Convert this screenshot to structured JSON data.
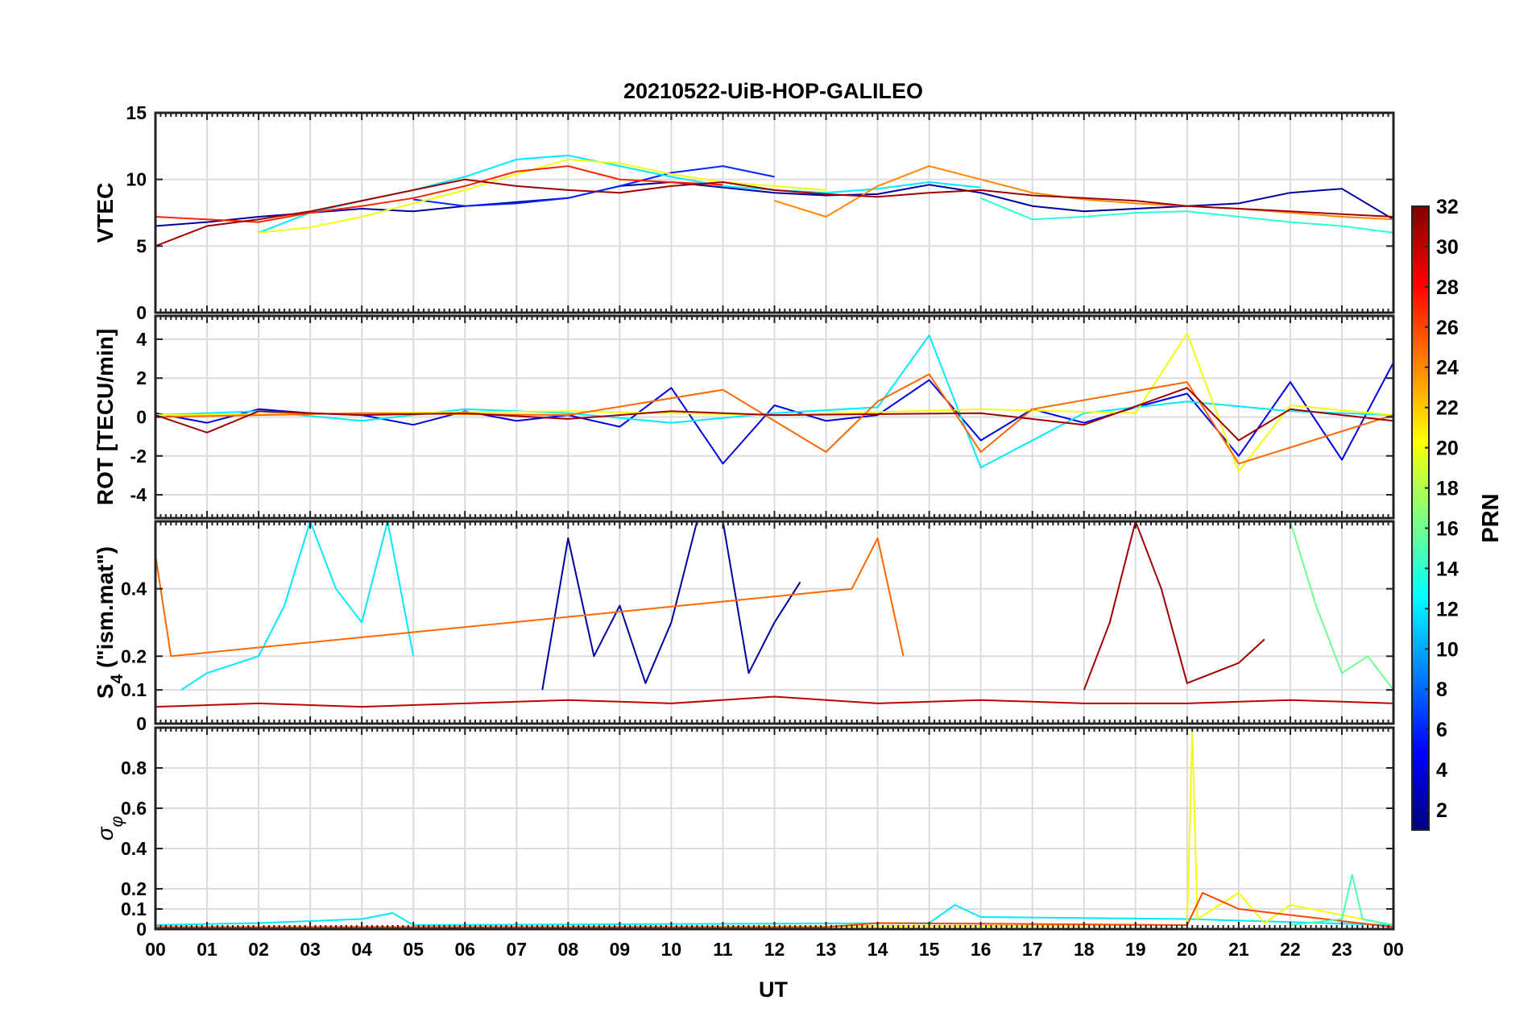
{
  "chart_data": {
    "type": "line",
    "title": "20210522-UiB-HOP-GALILEO",
    "xlabel": "UT",
    "x_ticks": [
      "00",
      "01",
      "02",
      "03",
      "04",
      "05",
      "06",
      "07",
      "08",
      "09",
      "10",
      "11",
      "12",
      "13",
      "14",
      "15",
      "16",
      "17",
      "18",
      "19",
      "20",
      "21",
      "22",
      "23",
      "00"
    ],
    "xlim": [
      0,
      24
    ],
    "grid": true,
    "panels": [
      {
        "key": "vtec",
        "ylabel": "VTEC",
        "ylim": [
          0,
          15
        ],
        "yticks": [
          "0",
          "5",
          "10",
          "15"
        ],
        "ytick_values": [
          0,
          5,
          10,
          15
        ],
        "series": [
          {
            "name": "PRN 2",
            "x": [
              0,
              1,
              2,
              3,
              4,
              5,
              6,
              7,
              8,
              9,
              10,
              11,
              12,
              13,
              14,
              15,
              16,
              17,
              18,
              19,
              20,
              21,
              22,
              23,
              24
            ],
            "values": [
              6.5,
              6.8,
              7.2,
              7.5,
              7.8,
              7.6,
              8.0,
              8.3,
              8.6,
              9.5,
              9.8,
              9.4,
              9.0,
              8.8,
              8.9,
              9.6,
              9.0,
              8.0,
              7.6,
              7.8,
              8.0,
              8.2,
              9.0,
              9.3,
              7.0
            ]
          },
          {
            "name": "PRN 6",
            "x": [
              5,
              6,
              7,
              8,
              9,
              10,
              11,
              12
            ],
            "values": [
              8.5,
              8.0,
              8.2,
              8.6,
              9.5,
              10.5,
              11.0,
              10.2
            ]
          },
          {
            "name": "PRN 12",
            "x": [
              2,
              3,
              4,
              5,
              6,
              7,
              8,
              9,
              10,
              11,
              12,
              13,
              14,
              15,
              16
            ],
            "values": [
              6.0,
              7.5,
              8.4,
              9.2,
              10.2,
              11.5,
              11.8,
              11.0,
              10.2,
              9.5,
              9.2,
              9.0,
              9.3,
              9.8,
              9.4
            ]
          },
          {
            "name": "PRN 14",
            "x": [
              16,
              17,
              18,
              19,
              20,
              21,
              22,
              23,
              24
            ],
            "values": [
              8.6,
              7.0,
              7.2,
              7.5,
              7.6,
              7.2,
              6.8,
              6.5,
              6.0
            ]
          },
          {
            "name": "PRN 20",
            "x": [
              2,
              3,
              4,
              5,
              6,
              7,
              8,
              9,
              10,
              11,
              12,
              13
            ],
            "values": [
              6.0,
              6.4,
              7.2,
              8.2,
              9.2,
              10.4,
              11.5,
              11.2,
              10.4,
              9.8,
              9.5,
              9.2
            ]
          },
          {
            "name": "PRN 24",
            "x": [
              12,
              13,
              14,
              15,
              16,
              17,
              18,
              19,
              20,
              21,
              22,
              23,
              24
            ],
            "values": [
              8.4,
              7.2,
              9.5,
              11.0,
              10.0,
              9.0,
              8.5,
              8.2,
              8.0,
              7.8,
              7.5,
              7.2,
              7.0
            ]
          },
          {
            "name": "PRN 27",
            "x": [
              0,
              1,
              2,
              3,
              4,
              5,
              6,
              7,
              8,
              9,
              10,
              11
            ],
            "values": [
              7.2,
              7.0,
              6.8,
              7.5,
              8.0,
              8.6,
              9.5,
              10.6,
              11.0,
              10.0,
              9.8,
              9.6
            ]
          },
          {
            "name": "PRN 31",
            "x": [
              0,
              1,
              2,
              3,
              4,
              5,
              6,
              7,
              8,
              9,
              10,
              11,
              12,
              13,
              14,
              15,
              16,
              17,
              18,
              19,
              20,
              21,
              22,
              23,
              24
            ],
            "values": [
              5.0,
              6.5,
              7.0,
              7.6,
              8.4,
              9.2,
              10.0,
              9.5,
              9.2,
              9.0,
              9.5,
              9.8,
              9.2,
              8.9,
              8.7,
              9.0,
              9.2,
              8.8,
              8.6,
              8.4,
              8.0,
              7.8,
              7.6,
              7.4,
              7.2
            ]
          }
        ]
      },
      {
        "key": "rot",
        "ylabel": "ROT [TECU/min]",
        "ylim": [
          -5.2,
          5.2
        ],
        "yticks": [
          "-4",
          "-2",
          "0",
          "2",
          "4"
        ],
        "ytick_values": [
          -4,
          -2,
          0,
          2,
          4
        ],
        "series": [
          {
            "name": "PRN 4",
            "x": [
              0,
              1,
              2,
              3,
              4,
              5,
              6,
              7,
              8,
              9,
              10,
              11,
              12,
              13,
              14,
              15,
              16,
              17,
              18,
              19,
              20,
              21,
              22,
              23,
              24
            ],
            "values": [
              0.2,
              -0.3,
              0.4,
              0.2,
              0.1,
              -0.4,
              0.3,
              -0.2,
              0.1,
              -0.5,
              1.5,
              -2.4,
              0.6,
              -0.2,
              0.1,
              1.9,
              -1.2,
              0.4,
              -0.3,
              0.5,
              1.2,
              -2.0,
              1.8,
              -2.2,
              2.8
            ]
          },
          {
            "name": "PRN 12",
            "x": [
              0,
              2,
              4,
              6,
              8,
              10,
              12,
              14,
              15,
              16,
              18,
              20,
              22,
              24
            ],
            "values": [
              0.1,
              0.3,
              -0.2,
              0.4,
              0.2,
              -0.3,
              0.2,
              0.5,
              4.2,
              -2.6,
              0.2,
              0.8,
              0.3,
              0.1
            ]
          },
          {
            "name": "PRN 20",
            "x": [
              0,
              4,
              8,
              12,
              16,
              19,
              20,
              21,
              22,
              24
            ],
            "values": [
              0.1,
              0.2,
              0.3,
              0.1,
              0.4,
              0.2,
              4.3,
              -2.8,
              0.6,
              0.1
            ]
          },
          {
            "name": "PRN 25",
            "x": [
              0,
              4,
              8,
              11,
              13,
              14,
              15,
              16,
              17,
              20,
              21,
              24
            ],
            "values": [
              0.0,
              0.2,
              0.1,
              1.4,
              -1.8,
              0.8,
              2.2,
              -1.8,
              0.4,
              1.8,
              -2.4,
              0.1
            ]
          },
          {
            "name": "PRN 31",
            "x": [
              0,
              1,
              2,
              4,
              6,
              8,
              10,
              12,
              16,
              18,
              20,
              21,
              22,
              24
            ],
            "values": [
              0.1,
              -0.8,
              0.3,
              0.1,
              0.2,
              -0.1,
              0.3,
              0.1,
              0.2,
              -0.4,
              1.5,
              -1.2,
              0.4,
              -0.2
            ]
          }
        ]
      },
      {
        "key": "s4",
        "ylabel": "S4 (\"ism.mat\")",
        "ylabel_main": "S",
        "ylabel_sub": "4",
        "ylabel_rest": " (\"ism.mat\")",
        "ylim": [
          0,
          0.6
        ],
        "yticks": [
          "0",
          "0.1",
          "0.2",
          "0.4"
        ],
        "ytick_values": [
          0,
          0.1,
          0.2,
          0.4
        ],
        "series": [
          {
            "name": "PRN 2",
            "x": [
              7.5,
              8,
              8.5,
              9,
              9.5,
              10,
              10.5,
              11,
              11.5,
              12,
              12.5
            ],
            "values": [
              0.1,
              0.55,
              0.2,
              0.35,
              0.12,
              0.3,
              0.6,
              0.6,
              0.15,
              0.3,
              0.42
            ]
          },
          {
            "name": "PRN 12",
            "x": [
              0.5,
              1,
              2,
              2.5,
              3,
              3.5,
              4,
              4.5,
              5
            ],
            "values": [
              0.1,
              0.15,
              0.2,
              0.35,
              0.6,
              0.4,
              0.3,
              0.6,
              0.2
            ]
          },
          {
            "name": "PRN 16",
            "x": [
              21.5,
              22,
              22.5,
              23,
              23.5,
              24
            ],
            "values": [
              0.6,
              0.6,
              0.35,
              0.15,
              0.2,
              0.1
            ]
          },
          {
            "name": "PRN 25",
            "x": [
              0,
              0.3,
              13.5,
              14,
              14.5
            ],
            "values": [
              0.5,
              0.2,
              0.4,
              0.55,
              0.2
            ]
          },
          {
            "name": "PRN 31",
            "x": [
              18,
              18.5,
              19,
              19.5,
              20,
              21,
              21.5
            ],
            "values": [
              0.1,
              0.3,
              0.6,
              0.4,
              0.12,
              0.18,
              0.25
            ]
          },
          {
            "name": "PRN 30",
            "x": [
              0,
              2,
              4,
              6,
              8,
              10,
              12,
              14,
              16,
              18,
              20,
              22,
              24
            ],
            "values": [
              0.05,
              0.06,
              0.05,
              0.06,
              0.07,
              0.06,
              0.08,
              0.06,
              0.07,
              0.06,
              0.06,
              0.07,
              0.06
            ]
          }
        ]
      },
      {
        "key": "sigma",
        "ylabel": "σφ",
        "ylabel_main": "σ",
        "ylabel_sub": "φ",
        "ylim": [
          0,
          1
        ],
        "yticks": [
          "0",
          "0.1",
          "0.2",
          "0.4",
          "0.6",
          "0.8"
        ],
        "ytick_values": [
          0,
          0.1,
          0.2,
          0.4,
          0.6,
          0.8
        ],
        "series": [
          {
            "name": "PRN 12",
            "x": [
              0,
              2,
              3,
              4,
              4.6,
              5,
              15,
              15.5,
              16,
              20,
              24
            ],
            "values": [
              0.02,
              0.03,
              0.04,
              0.05,
              0.08,
              0.02,
              0.03,
              0.12,
              0.06,
              0.05,
              0.02
            ]
          },
          {
            "name": "PRN 20",
            "x": [
              0,
              10,
              20,
              20.1,
              20.2,
              21,
              21.5,
              22,
              24
            ],
            "values": [
              0.01,
              0.01,
              0.02,
              0.98,
              0.05,
              0.18,
              0.03,
              0.12,
              0.02
            ]
          },
          {
            "name": "PRN 26",
            "x": [
              0,
              13,
              14,
              20,
              20.3,
              21,
              24
            ],
            "values": [
              0.01,
              0.01,
              0.03,
              0.02,
              0.18,
              0.1,
              0.01
            ]
          },
          {
            "name": "PRN 15",
            "x": [
              22,
              23,
              23.2,
              23.4,
              24
            ],
            "values": [
              0.02,
              0.05,
              0.27,
              0.05,
              0.02
            ]
          }
        ]
      }
    ],
    "colorbar": {
      "label": "PRN",
      "colormap": "jet",
      "range": [
        1,
        32
      ],
      "ticks": [
        "2",
        "4",
        "6",
        "8",
        "10",
        "12",
        "14",
        "16",
        "18",
        "20",
        "22",
        "24",
        "26",
        "28",
        "30",
        "32"
      ],
      "tick_values": [
        2,
        4,
        6,
        8,
        10,
        12,
        14,
        16,
        18,
        20,
        22,
        24,
        26,
        28,
        30,
        32
      ]
    }
  }
}
